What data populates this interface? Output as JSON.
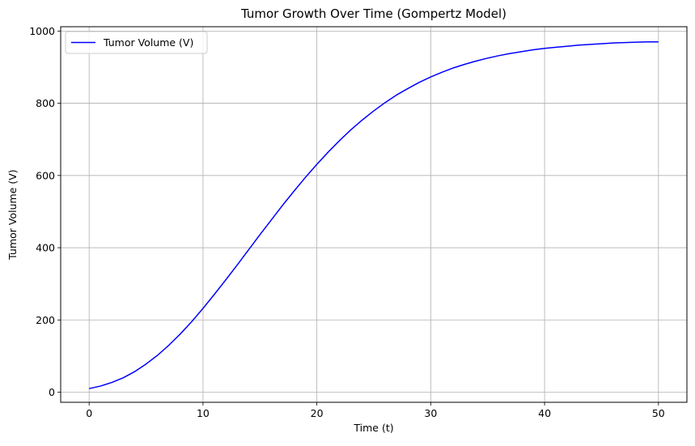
{
  "chart_data": {
    "type": "line",
    "title": "Tumor Growth Over Time (Gompertz Model)",
    "xlabel": "Time (t)",
    "ylabel": "Tumor Volume (V)",
    "xlim": [
      -2.5,
      52.5
    ],
    "ylim": [
      -28,
      1012
    ],
    "xticks": [
      0,
      10,
      20,
      30,
      40,
      50
    ],
    "yticks": [
      0,
      200,
      400,
      600,
      800,
      1000
    ],
    "grid": true,
    "legend_position": "upper-left",
    "series": [
      {
        "name": "Tumor Volume (V)",
        "color": "#0000ff",
        "x": [
          0,
          1,
          2,
          3,
          4,
          5,
          6,
          7,
          8,
          9,
          10,
          11,
          12,
          13,
          14,
          15,
          16,
          17,
          18,
          19,
          20,
          21,
          22,
          23,
          24,
          25,
          26,
          27,
          28,
          29,
          30,
          31,
          32,
          33,
          34,
          35,
          36,
          37,
          38,
          39,
          40,
          41,
          42,
          43,
          44,
          45,
          46,
          47,
          48,
          49,
          50
        ],
        "y": [
          10,
          17,
          27,
          40,
          57,
          78,
          102,
          130,
          161,
          195,
          232,
          271,
          311,
          352,
          394,
          436,
          477,
          518,
          557,
          595,
          631,
          665,
          697,
          727,
          754,
          779,
          802,
          823,
          841,
          858,
          873,
          886,
          898,
          908,
          917,
          925,
          932,
          938,
          943,
          948,
          952,
          955,
          958,
          961,
          963,
          965,
          967,
          968,
          969,
          970,
          970
        ]
      }
    ]
  }
}
